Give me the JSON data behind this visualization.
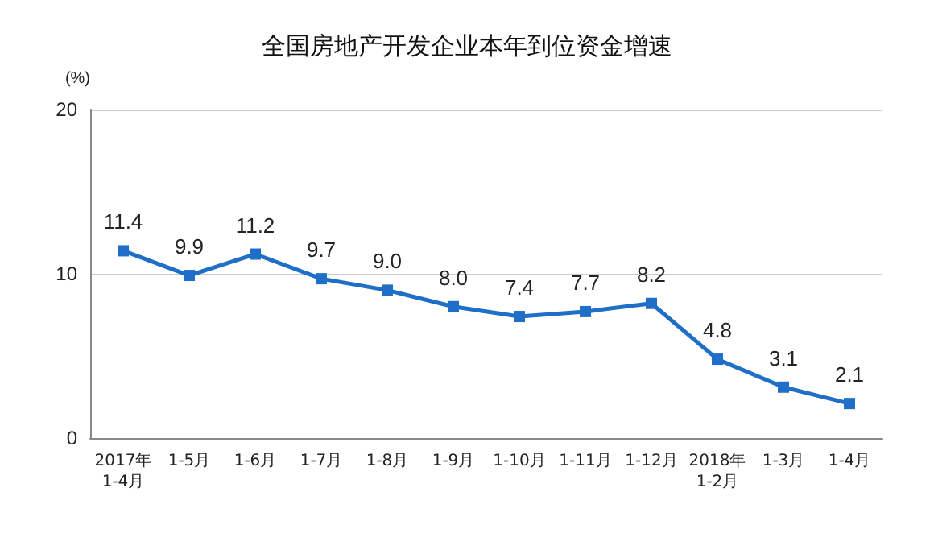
{
  "chart_data": {
    "type": "line",
    "title": "全国房地产开发企业本年到位资金增速",
    "ylabel": "(%)",
    "categories": [
      "2017年\n1-4月",
      "1-5月",
      "1-6月",
      "1-7月",
      "1-8月",
      "1-9月",
      "1-10月",
      "1-11月",
      "1-12月",
      "2018年\n1-2月",
      "1-3月",
      "1-4月"
    ],
    "series": [
      {
        "color": "#1f6fc8",
        "values": [
          11.4,
          9.9,
          11.2,
          9.7,
          9.0,
          8.0,
          7.4,
          7.7,
          8.2,
          4.8,
          3.1,
          2.1
        ],
        "value_labels": [
          "11.4",
          "9.9",
          "11.2",
          "9.7",
          "9.0",
          "8.0",
          "7.4",
          "7.7",
          "8.2",
          "4.8",
          "3.1",
          "2.1"
        ]
      }
    ],
    "ylim": [
      0,
      20
    ],
    "yticks": [
      0,
      10,
      20
    ],
    "grid": "y",
    "marker": "square",
    "line_style": "solid"
  }
}
